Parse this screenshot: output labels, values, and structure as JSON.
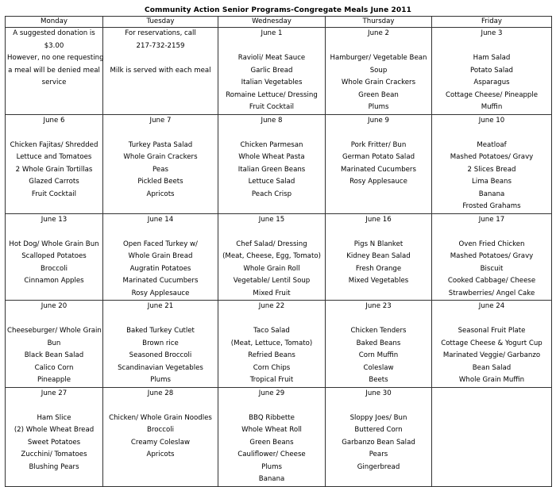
{
  "title": "Community Action Senior Programs-Congregate Meals  June 2011",
  "days": [
    "Monday",
    "Tuesday",
    "Wednesday",
    "Thursday",
    "Friday"
  ],
  "weeks": [
    [
      {
        "date": "",
        "items": [
          "A suggested donation is",
          "$3.00",
          "However, no one requesting",
          "a meal will be denied meal",
          "service"
        ],
        "note": true
      },
      {
        "date": "",
        "items": [
          "For reservations, call",
          "217-732-2159",
          "",
          "Milk is served with each meal"
        ],
        "note": true
      },
      {
        "date": "June 1",
        "items": [
          "Ravioli/ Meat Sauce",
          "Garlic Bread",
          "Italian Vegetables",
          "Romaine Lettuce/ Dressing",
          "Fruit Cocktail"
        ]
      },
      {
        "date": "June 2",
        "items": [
          "Hamburger/ Vegetable Bean",
          "Soup",
          "Whole Grain Crackers",
          "Green Bean",
          "Plums"
        ]
      },
      {
        "date": "June 3",
        "items": [
          "Ham Salad",
          "Potato Salad",
          "Asparagus",
          "Cottage Cheese/ Pineapple",
          "Muffin"
        ]
      }
    ],
    [
      {
        "date": "June 6",
        "items": [
          "Chicken Fajitas/ Shredded",
          "Lettuce and Tomatoes",
          "2 Whole Grain Tortillas",
          "Glazed Carrots",
          "Fruit Cocktail"
        ]
      },
      {
        "date": "June 7",
        "items": [
          "Turkey Pasta Salad",
          "Whole Grain Crackers",
          "Peas",
          "Pickled Beets",
          "Apricots"
        ]
      },
      {
        "date": "June 8",
        "items": [
          "Chicken Parmesan",
          "Whole Wheat Pasta",
          "Italian Green Beans",
          "Lettuce Salad",
          "Peach Crisp"
        ]
      },
      {
        "date": "June 9",
        "items": [
          "Pork Fritter/ Bun",
          "German Potato Salad",
          "Marinated Cucumbers",
          "Rosy Applesauce"
        ]
      },
      {
        "date": "June 10",
        "items": [
          "Meatloaf",
          "Mashed Potatoes/ Gravy",
          "2 Slices Bread",
          "Lima Beans",
          "Banana",
          "Frosted Grahams"
        ]
      }
    ],
    [
      {
        "date": "June 13",
        "items": [
          "Hot Dog/ Whole Grain Bun",
          "Scalloped Potatoes",
          "Broccoli",
          "Cinnamon Apples"
        ]
      },
      {
        "date": "June 14",
        "items": [
          "Open Faced Turkey w/",
          "Whole Grain Bread",
          "Augratin Potatoes",
          "Marinated Cucumbers",
          "Rosy Applesauce"
        ]
      },
      {
        "date": "June 15",
        "items": [
          "Chef Salad/ Dressing",
          "(Meat, Cheese, Egg, Tomato)",
          "Whole Grain Roll",
          "Vegetable/ Lentil Soup",
          "Mixed Fruit"
        ]
      },
      {
        "date": "June 16",
        "items": [
          "Pigs N Blanket",
          "Kidney Bean Salad",
          "Fresh Orange",
          "Mixed Vegetables"
        ]
      },
      {
        "date": "June 17",
        "items": [
          "Oven Fried Chicken",
          "Mashed Potatoes/ Gravy",
          "Biscuit",
          "Cooked Cabbage/ Cheese",
          "Strawberries/ Angel Cake"
        ]
      }
    ],
    [
      {
        "date": "June 20",
        "items": [
          "Cheeseburger/ Whole Grain",
          "Bun",
          "Black Bean Salad",
          "Calico Corn",
          "Pineapple"
        ]
      },
      {
        "date": "June 21",
        "items": [
          "Baked Turkey Cutlet",
          "Brown rice",
          "Seasoned Broccoli",
          "Scandinavian Vegetables",
          "Plums"
        ]
      },
      {
        "date": "June 22",
        "items": [
          "Taco Salad",
          "(Meat, Lettuce, Tomato)",
          "Refried Beans",
          "Corn Chips",
          "Tropical Fruit"
        ]
      },
      {
        "date": "June 23",
        "items": [
          "Chicken Tenders",
          "Baked Beans",
          "Corn Muffin",
          "Coleslaw",
          "Beets"
        ]
      },
      {
        "date": "June 24",
        "items": [
          "Seasonal Fruit Plate",
          "Cottage Cheese & Yogurt Cup",
          "Marinated Veggie/ Garbanzo",
          "Bean Salad",
          "Whole Grain Muffin"
        ]
      }
    ],
    [
      {
        "date": "June 27",
        "items": [
          "Ham Slice",
          "(2) Whole Wheat Bread",
          "Sweet Potatoes",
          "Zucchini/ Tomatoes",
          "Blushing Pears"
        ]
      },
      {
        "date": "June 28",
        "items": [
          "Chicken/ Whole Grain Noodles",
          "Broccoli",
          "Creamy Coleslaw",
          "Apricots"
        ]
      },
      {
        "date": "June 29",
        "items": [
          "BBQ Ribbette",
          "Whole Wheat Roll",
          "Green Beans",
          "Cauliflower/ Cheese",
          "Plums",
          "Banana"
        ]
      },
      {
        "date": "June 30",
        "items": [
          "Sloppy Joes/ Bun",
          "Buttered Corn",
          "Garbanzo Bean Salad",
          "Pears",
          "Gingerbread"
        ]
      },
      {
        "date": "",
        "items": []
      }
    ]
  ]
}
